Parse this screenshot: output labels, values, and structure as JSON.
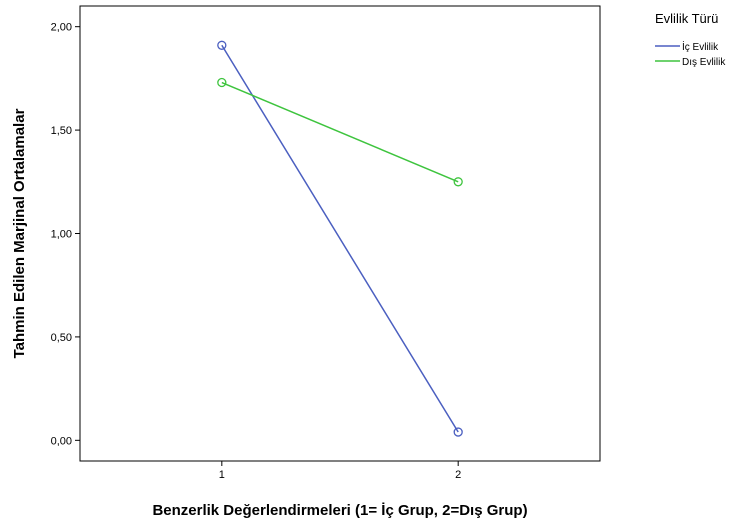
{
  "chart_data": {
    "type": "line",
    "title": "",
    "xlabel": "Benzerlik Değerlendirmeleri (1= İç Grup,  2=Dış Grup)",
    "ylabel": "Tahmin Edilen Marjinal Ortalamalar",
    "x": [
      1,
      2
    ],
    "x_ticks": [
      "1",
      "2"
    ],
    "y_ticks": [
      "0,00",
      "0,50",
      "1,00",
      "1,50",
      "2,00"
    ],
    "y_tick_values": [
      0,
      0.5,
      1.0,
      1.5,
      2.0
    ],
    "ylim": [
      -0.1,
      2.1
    ],
    "xlim": [
      0.4,
      2.6
    ],
    "grid": false,
    "markers": "open-circle",
    "legend": {
      "title": "Evlilik Türü",
      "placement": "right"
    },
    "series": [
      {
        "name": "İç Evlilik",
        "values": [
          1.91,
          0.04
        ],
        "color": "#4b5fc0"
      },
      {
        "name": "Dış Evlilik",
        "values": [
          1.73,
          1.25
        ],
        "color": "#3ec43e"
      }
    ]
  }
}
